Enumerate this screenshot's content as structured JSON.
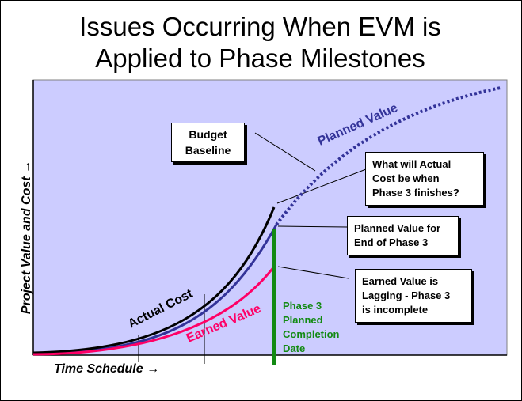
{
  "title": {
    "line1": "Issues Occurring When EVM is",
    "line2": "Applied to Phase Milestones"
  },
  "axes": {
    "x_label": "Time Schedule →",
    "y_label": "Project Value and Cost →"
  },
  "curves": {
    "planned_value": "Planned Value",
    "actual_cost": "Actual Cost",
    "earned_value": "Earned Value"
  },
  "phase_marker": {
    "line1": "Phase 3",
    "line2": "Planned",
    "line3": "Completion",
    "line4": "Date"
  },
  "callouts": {
    "budget_baseline": [
      "Budget",
      "Baseline"
    ],
    "actual_cost_question": [
      "What will Actual",
      "Cost be when",
      "Phase 3 finishes?"
    ],
    "planned_value_end": [
      "Planned Value for",
      "End of Phase 3"
    ],
    "earned_value_lagging": [
      "Earned Value is",
      "Lagging - Phase 3",
      "is incomplete"
    ]
  },
  "colors": {
    "plot_background": "#ccccff",
    "planned_value": "#333399",
    "actual_cost": "#000000",
    "earned_value": "#ff0066",
    "phase_marker": "#138a13"
  }
}
